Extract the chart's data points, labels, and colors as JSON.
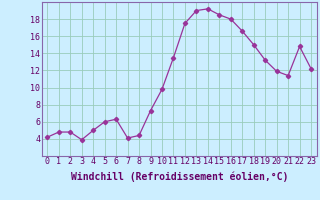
{
  "x": [
    0,
    1,
    2,
    3,
    4,
    5,
    6,
    7,
    8,
    9,
    10,
    11,
    12,
    13,
    14,
    15,
    16,
    17,
    18,
    19,
    20,
    21,
    22,
    23
  ],
  "y": [
    4.2,
    4.8,
    4.8,
    3.9,
    5.0,
    6.0,
    6.3,
    4.1,
    4.4,
    7.3,
    9.8,
    13.5,
    17.5,
    19.0,
    19.2,
    18.5,
    18.0,
    16.6,
    15.0,
    13.2,
    11.9,
    11.4,
    14.8,
    12.2
  ],
  "line_color": "#993399",
  "marker": "D",
  "marker_size": 2.2,
  "bg_color": "#cceeff",
  "grid_color": "#99ccbb",
  "xlabel": "Windchill (Refroidissement éolien,°C)",
  "xlabel_fontsize": 7,
  "ylim": [
    2,
    20
  ],
  "xlim": [
    -0.5,
    23.5
  ],
  "yticks": [
    4,
    6,
    8,
    10,
    12,
    14,
    16,
    18
  ],
  "xticks": [
    0,
    1,
    2,
    3,
    4,
    5,
    6,
    7,
    8,
    9,
    10,
    11,
    12,
    13,
    14,
    15,
    16,
    17,
    18,
    19,
    20,
    21,
    22,
    23
  ],
  "tick_fontsize": 6,
  "spine_color": "#8866aa"
}
